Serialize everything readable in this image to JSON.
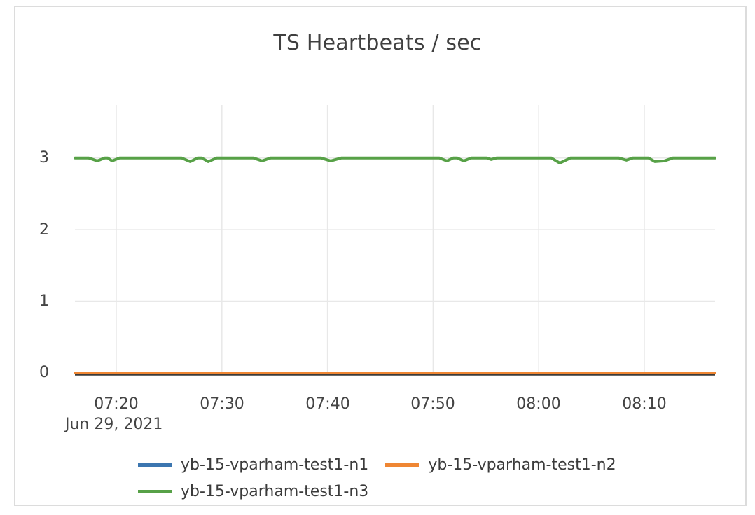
{
  "chart_data": {
    "type": "line",
    "title": "TS Heartbeats / sec",
    "x_axis": {
      "date_label": "Jun 29, 2021",
      "tick_labels": [
        "07:20",
        "07:30",
        "07:40",
        "07:50",
        "08:00",
        "08:10"
      ],
      "tick_minutes": [
        20,
        30,
        40,
        50,
        60,
        70
      ],
      "range_minutes": [
        16.1,
        76.7
      ],
      "unit": "time HH:MM, minutes after 07:00 on Jun 29, 2021"
    },
    "y_axis": {
      "tick_labels": [
        "0",
        "1",
        "2",
        "3"
      ],
      "tick_values": [
        0,
        1,
        2,
        3
      ],
      "range": [
        0,
        3.74
      ]
    },
    "grid": true,
    "grid_color": "#e8e8e8",
    "zero_line_color": "#3a3a3a",
    "text_color": "#444444",
    "title_color": "#404040",
    "legend_position": "bottom-center",
    "series": [
      {
        "name": "yb-15-vparham-test1-n1",
        "color": "#3c76b0",
        "line_width": 3,
        "points": [
          [
            16.1,
            0
          ],
          [
            76.7,
            0
          ]
        ]
      },
      {
        "name": "yb-15-vparham-test1-n2",
        "color": "#ef8633",
        "line_width": 3,
        "points": [
          [
            16.1,
            0
          ],
          [
            76.7,
            0
          ]
        ]
      },
      {
        "name": "yb-15-vparham-test1-n3",
        "color": "#57a147",
        "line_width": 4,
        "points": [
          [
            16.1,
            3
          ],
          [
            17.4,
            3
          ],
          [
            18.2,
            2.96
          ],
          [
            18.9,
            3
          ],
          [
            19.2,
            3
          ],
          [
            19.6,
            2.96
          ],
          [
            20.3,
            3
          ],
          [
            26.2,
            3
          ],
          [
            27.0,
            2.95
          ],
          [
            27.7,
            3
          ],
          [
            28.1,
            3
          ],
          [
            28.7,
            2.95
          ],
          [
            29.5,
            3
          ],
          [
            33.0,
            3
          ],
          [
            33.8,
            2.96
          ],
          [
            34.6,
            3
          ],
          [
            39.4,
            3
          ],
          [
            40.3,
            2.96
          ],
          [
            41.3,
            3
          ],
          [
            50.6,
            3
          ],
          [
            51.3,
            2.96
          ],
          [
            51.9,
            3
          ],
          [
            52.3,
            3
          ],
          [
            52.9,
            2.96
          ],
          [
            53.6,
            3
          ],
          [
            55.1,
            3
          ],
          [
            55.5,
            2.98
          ],
          [
            56.0,
            3
          ],
          [
            61.2,
            3
          ],
          [
            62.0,
            2.93
          ],
          [
            63.0,
            3
          ],
          [
            67.6,
            3
          ],
          [
            68.3,
            2.97
          ],
          [
            68.9,
            3
          ],
          [
            70.4,
            3
          ],
          [
            71.0,
            2.95
          ],
          [
            71.9,
            2.96
          ],
          [
            72.7,
            3
          ],
          [
            76.7,
            3
          ]
        ]
      }
    ]
  }
}
